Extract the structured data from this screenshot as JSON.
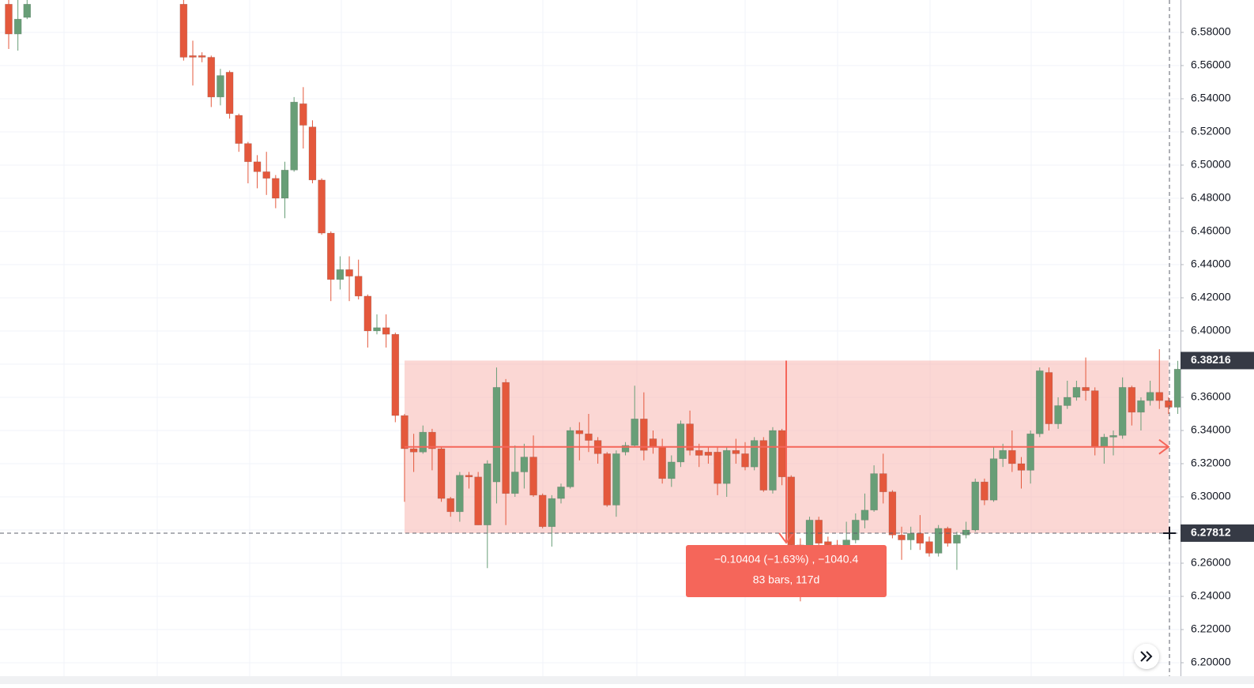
{
  "chart_data": {
    "type": "candlestick",
    "up_color": "#689e77",
    "down_color": "#e4583c",
    "grid": true,
    "ylim": [
      6.1919,
      6.59952
    ],
    "yticks": [
      {
        "value": 6.2,
        "label": "6.20000"
      },
      {
        "value": 6.22,
        "label": "6.22000"
      },
      {
        "value": 6.24,
        "label": "6.24000"
      },
      {
        "value": 6.26,
        "label": "6.26000"
      },
      {
        "value": 6.28,
        "label": "6.28000"
      },
      {
        "value": 6.3,
        "label": "6.30000"
      },
      {
        "value": 6.32,
        "label": "6.32000"
      },
      {
        "value": 6.34,
        "label": "6.34000"
      },
      {
        "value": 6.36,
        "label": "6.36000"
      },
      {
        "value": 6.38,
        "label": "6.38000"
      },
      {
        "value": 6.4,
        "label": "6.40000"
      },
      {
        "value": 6.42,
        "label": "6.42000"
      },
      {
        "value": 6.44,
        "label": "6.44000"
      },
      {
        "value": 6.46,
        "label": "6.46000"
      },
      {
        "value": 6.48,
        "label": "6.48000"
      },
      {
        "value": 6.5,
        "label": "6.50000"
      },
      {
        "value": 6.52,
        "label": "6.52000"
      },
      {
        "value": 6.54,
        "label": "6.54000"
      },
      {
        "value": 6.56,
        "label": "6.56000"
      },
      {
        "value": 6.58,
        "label": "6.58000"
      }
    ],
    "open": [
      6.597,
      6.579,
      6.589,
      null,
      null,
      null,
      null,
      null,
      null,
      null,
      null,
      null,
      null,
      null,
      null,
      null,
      null,
      null,
      null,
      6.597,
      6.566,
      6.566,
      6.565,
      6.541,
      6.556,
      6.53,
      6.513,
      6.502,
      6.496,
      6.492,
      6.48,
      6.497,
      6.537,
      6.523,
      6.491,
      6.459,
      6.431,
      6.437,
      6.433,
      6.421,
      6.4,
      6.402,
      6.398,
      6.349,
      6.329,
      6.327,
      6.339,
      6.329,
      6.299,
      6.291,
      6.313,
      6.312,
      6.283,
      6.309,
      6.369,
      6.302,
      6.315,
      6.324,
      6.301,
      6.282,
      6.299,
      6.306,
      6.34,
      6.338,
      6.334,
      6.326,
      6.295,
      6.327,
      6.331,
      6.347,
      6.335,
      6.33,
      6.311,
      6.321,
      6.344,
      6.328,
      6.327,
      6.327,
      6.308,
      6.328,
      6.326,
      6.318,
      6.334,
      6.304,
      6.34,
      6.312,
      6.271,
      6.265,
      6.286,
      6.273,
      6.271,
      6.27,
      6.274,
      6.286,
      6.292,
      6.314,
      6.303,
      6.277,
      6.274,
      6.278,
      6.273,
      6.266,
      6.281,
      6.272,
      6.277,
      6.28,
      6.309,
      6.298,
      6.323,
      6.328,
      6.32,
      6.316,
      6.338,
      6.375,
      6.344,
      6.355,
      6.36,
      6.366,
      6.364,
      6.33,
      6.336,
      6.337,
      6.366,
      6.351,
      6.358,
      6.363,
      6.358,
      6.354
    ],
    "high": [
      6.6,
      6.6,
      6.602,
      null,
      null,
      null,
      null,
      null,
      null,
      null,
      null,
      null,
      null,
      null,
      null,
      null,
      null,
      null,
      null,
      6.6,
      6.575,
      6.568,
      6.566,
      6.558,
      6.557,
      6.531,
      6.514,
      6.506,
      6.508,
      6.494,
      6.502,
      6.541,
      6.547,
      6.527,
      6.492,
      6.46,
      6.445,
      6.445,
      6.443,
      6.422,
      6.41,
      6.41,
      6.399,
      6.35,
      6.338,
      6.343,
      6.341,
      6.33,
      6.3,
      6.315,
      6.315,
      6.315,
      6.322,
      6.378,
      6.371,
      6.331,
      6.332,
      6.337,
      6.302,
      6.301,
      6.308,
      6.342,
      6.345,
      6.35,
      6.336,
      6.327,
      6.328,
      6.333,
      6.367,
      6.363,
      6.34,
      6.335,
      6.325,
      6.346,
      6.352,
      6.332,
      6.33,
      6.33,
      6.33,
      6.335,
      6.333,
      6.336,
      6.336,
      6.342,
      6.341,
      6.313,
      6.275,
      6.288,
      6.288,
      6.276,
      6.274,
      6.285,
      6.29,
      6.302,
      6.319,
      6.326,
      6.304,
      6.282,
      6.282,
      6.289,
      6.276,
      6.283,
      6.282,
      6.279,
      6.285,
      6.311,
      6.311,
      6.33,
      6.332,
      6.34,
      6.324,
      6.34,
      6.378,
      6.378,
      6.36,
      6.37,
      6.37,
      6.384,
      6.366,
      6.338,
      6.34,
      6.372,
      6.367,
      6.36,
      6.37,
      6.389,
      6.36,
      6.382
    ],
    "low": [
      6.57,
      6.569,
      6.588,
      null,
      null,
      null,
      null,
      null,
      null,
      null,
      null,
      null,
      null,
      null,
      null,
      null,
      null,
      null,
      null,
      6.563,
      6.548,
      6.562,
      6.535,
      6.536,
      6.528,
      6.508,
      6.489,
      6.486,
      6.482,
      6.474,
      6.468,
      6.496,
      6.51,
      6.489,
      6.458,
      6.418,
      6.425,
      6.418,
      6.419,
      6.39,
      6.398,
      6.39,
      6.345,
      6.297,
      6.315,
      6.326,
      6.316,
      6.297,
      6.288,
      6.285,
      6.305,
      6.283,
      6.257,
      6.296,
      6.283,
      6.3,
      6.305,
      6.3,
      6.281,
      6.27,
      6.296,
      6.305,
      6.322,
      6.327,
      6.32,
      6.294,
      6.288,
      6.325,
      6.33,
      6.322,
      6.326,
      6.308,
      6.306,
      6.318,
      6.325,
      6.318,
      6.32,
      6.301,
      6.3,
      6.32,
      6.316,
      6.316,
      6.303,
      6.302,
      6.307,
      6.269,
      6.237,
      6.262,
      6.265,
      6.265,
      6.266,
      6.268,
      6.272,
      6.281,
      6.291,
      6.296,
      6.275,
      6.262,
      6.268,
      6.268,
      6.264,
      6.264,
      6.27,
      6.256,
      6.275,
      6.279,
      6.295,
      6.297,
      6.318,
      6.315,
      6.305,
      6.308,
      6.336,
      6.34,
      6.341,
      6.353,
      6.358,
      6.358,
      6.325,
      6.32,
      6.325,
      6.335,
      6.343,
      6.34,
      6.355,
      6.353,
      6.35,
      6.35
    ],
    "close": [
      6.579,
      6.588,
      6.597,
      null,
      null,
      null,
      null,
      null,
      null,
      null,
      null,
      null,
      null,
      null,
      null,
      null,
      null,
      null,
      null,
      6.565,
      6.565,
      6.565,
      6.541,
      6.554,
      6.531,
      6.513,
      6.502,
      6.496,
      6.492,
      6.48,
      6.497,
      6.538,
      6.524,
      6.491,
      6.459,
      6.431,
      6.437,
      6.433,
      6.421,
      6.4,
      6.402,
      6.398,
      6.349,
      6.329,
      6.327,
      6.339,
      6.329,
      6.299,
      6.291,
      6.313,
      6.312,
      6.283,
      6.32,
      6.366,
      6.302,
      6.315,
      6.324,
      6.301,
      6.282,
      6.299,
      6.306,
      6.34,
      6.338,
      6.334,
      6.326,
      6.295,
      6.326,
      6.331,
      6.347,
      6.328,
      6.33,
      6.311,
      6.321,
      6.344,
      6.328,
      6.325,
      6.325,
      6.308,
      6.328,
      6.326,
      6.318,
      6.334,
      6.304,
      6.34,
      6.312,
      6.271,
      6.265,
      6.286,
      6.272,
      6.271,
      6.27,
      6.274,
      6.286,
      6.292,
      6.314,
      6.303,
      6.277,
      6.274,
      6.278,
      6.272,
      6.266,
      6.281,
      6.272,
      6.277,
      6.28,
      6.309,
      6.298,
      6.323,
      6.328,
      6.32,
      6.316,
      6.338,
      6.376,
      6.344,
      6.355,
      6.36,
      6.366,
      6.364,
      6.33,
      6.336,
      6.337,
      6.366,
      6.351,
      6.358,
      6.363,
      6.358,
      6.354,
      6.377
    ],
    "range_top": 6.38216,
    "range_bottom": 6.27812,
    "range_color": "#f7b6b0",
    "measure_label": [
      "−0.10404 (−1.63%) , −1040.4",
      "83 bars, 117d"
    ],
    "measure_color": "#f5665a"
  }
}
